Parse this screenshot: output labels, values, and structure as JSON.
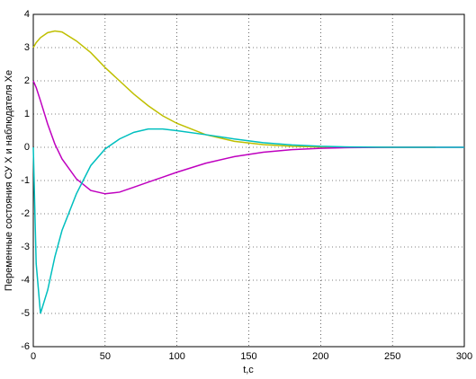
{
  "chart_data": {
    "type": "line",
    "x_label": "t,c",
    "y_label": "Переменные состояния СУ X и наблюдателя Xe",
    "x": [
      0,
      2,
      5,
      10,
      15,
      20,
      30,
      40,
      50,
      60,
      70,
      80,
      90,
      100,
      120,
      140,
      160,
      180,
      200,
      220,
      250,
      280,
      300
    ],
    "series": [
      {
        "color": "#bfbf00",
        "values": [
          3.0,
          3.15,
          3.3,
          3.45,
          3.5,
          3.47,
          3.2,
          2.85,
          2.4,
          2.0,
          1.6,
          1.25,
          0.95,
          0.72,
          0.38,
          0.18,
          0.08,
          0.03,
          0.01,
          0,
          0,
          0,
          null
        ]
      },
      {
        "color": "#bf00bf",
        "values": [
          2.0,
          1.8,
          1.4,
          0.7,
          0.1,
          -0.35,
          -0.95,
          -1.3,
          -1.4,
          -1.35,
          -1.2,
          -1.05,
          -0.9,
          -0.75,
          -0.48,
          -0.28,
          -0.15,
          -0.07,
          -0.03,
          -0.01,
          0,
          0,
          0
        ]
      },
      {
        "color": "#00bfbf",
        "values": [
          0,
          -3.5,
          -5.0,
          -4.3,
          -3.3,
          -2.5,
          -1.4,
          -0.55,
          -0.05,
          0.25,
          0.45,
          0.55,
          0.55,
          0.5,
          0.38,
          0.25,
          0.14,
          0.07,
          0.03,
          0.01,
          0,
          0,
          0
        ]
      }
    ],
    "xlim": [
      0,
      300
    ],
    "xticks": [
      0,
      50,
      100,
      150,
      200,
      250,
      300
    ],
    "ylim": [
      -6,
      4
    ],
    "yticks": [
      -6,
      -5,
      -4,
      -3,
      -2,
      -1,
      0,
      1,
      2,
      3,
      4
    ],
    "grid": true
  }
}
